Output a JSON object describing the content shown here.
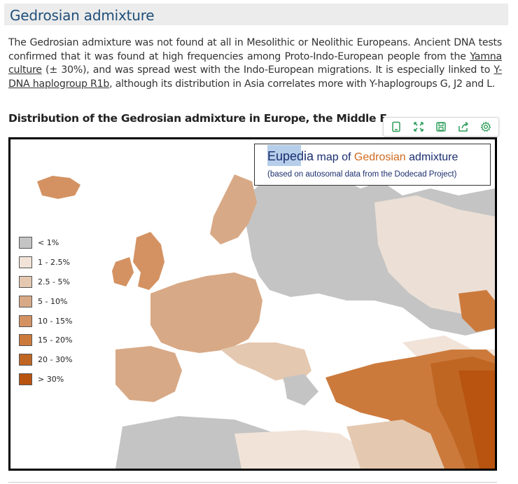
{
  "section": {
    "title": "Gedrosian admixture"
  },
  "paragraph": {
    "p1": "The Gedrosian admixture was not found at all in Mesolithic or Neolithic Europeans. Ancient DNA tests confirmed that it was found at high frequencies among Proto-Indo-European people from the ",
    "link1": "Yamna culture",
    "p2": " (± 30%), and was spread west with the Indo-European migrations. It is especially linked to ",
    "link2": "Y-DNA haplogroup R1b",
    "p3": ", although its distribution in Asia correlates more with Y-haplogroups G, J2 and L."
  },
  "figure": {
    "caption": "Distribution of the Gedrosian admixture in Europe, the Middle East and North Africa",
    "title_brand": "Eupedia",
    "title_mid1": " map of ",
    "title_accent": "Gedrosian",
    "title_mid2": " admixture",
    "subtitle": "(based on autosomal data from the Dodecad Project)"
  },
  "legend": [
    {
      "label": "< 1%",
      "color": "#c4c4c4"
    },
    {
      "label": "1 - 2.5%",
      "color": "#f1e3d8"
    },
    {
      "label": "2.5 - 5%",
      "color": "#e4c8b0"
    },
    {
      "label": "5 - 10%",
      "color": "#d8a986"
    },
    {
      "label": "10 - 15%",
      "color": "#d49262"
    },
    {
      "label": "15 - 20%",
      "color": "#cc7a3c"
    },
    {
      "label": "20 - 30%",
      "color": "#bf6623"
    },
    {
      "label": "> 30%",
      "color": "#b85310"
    }
  ],
  "toolbar": {
    "icons": [
      "tablet-icon",
      "expand-icon",
      "save-icon",
      "share-icon",
      "settings-icon"
    ],
    "color": "#2e9e5b"
  }
}
